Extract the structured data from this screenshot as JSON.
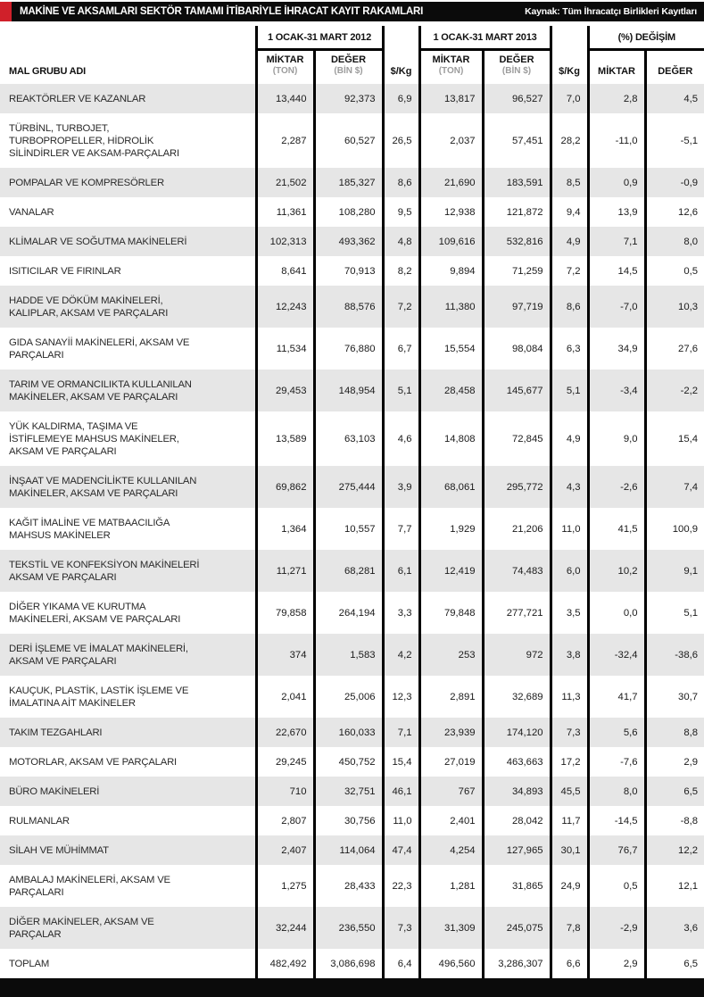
{
  "title_bar": {
    "title": "MAKİNE VE AKSAMLARI SEKTÖR TAMAMI İTİBARİYLE İHRACAT KAYIT RAKAMLARI",
    "source": "Kaynak: Tüm İhracatçı Birlikleri Kayıtları"
  },
  "colors": {
    "accent_red": "#d0202a",
    "bar_black": "#0b0b0b",
    "row_stripe_gray": "#e6e6e6",
    "unit_label_gray": "#9c9c9c"
  },
  "table": {
    "col1_header": "MAL GRUBU ADI",
    "groups": [
      {
        "label": "1 OCAK-31 MART 2012"
      },
      {
        "label": "1 OCAK-31 MART 2013"
      },
      {
        "label": "(%) DEĞİŞİM"
      }
    ],
    "subheaders": {
      "miktar": "MİKTAR",
      "ton": "(TON)",
      "deger": "DEĞER",
      "bin": "(BİN $)",
      "perkg": "$/Kg"
    },
    "rows": [
      {
        "name": "REAKTÖRLER VE KAZANLAR",
        "values": [
          "13,440",
          "92,373",
          "6,9",
          "13,817",
          "96,527",
          "7,0",
          "2,8",
          "4,5"
        ]
      },
      {
        "name": "TÜRBİNL, TURBOJET, TURBOPROPELLER, HİDROLİK SİLİNDİRLER VE AKSAM-PARÇALARI",
        "values": [
          "2,287",
          "60,527",
          "26,5",
          "2,037",
          "57,451",
          "28,2",
          "-11,0",
          "-5,1"
        ]
      },
      {
        "name": "POMPALAR VE KOMPRESÖRLER",
        "values": [
          "21,502",
          "185,327",
          "8,6",
          "21,690",
          "183,591",
          "8,5",
          "0,9",
          "-0,9"
        ]
      },
      {
        "name": "VANALAR",
        "values": [
          "11,361",
          "108,280",
          "9,5",
          "12,938",
          "121,872",
          "9,4",
          "13,9",
          "12,6"
        ]
      },
      {
        "name": "KLİMALAR VE SOĞUTMA MAKİNELERİ",
        "values": [
          "102,313",
          "493,362",
          "4,8",
          "109,616",
          "532,816",
          "4,9",
          "7,1",
          "8,0"
        ]
      },
      {
        "name": "ISITICILAR VE FIRINLAR",
        "values": [
          "8,641",
          "70,913",
          "8,2",
          "9,894",
          "71,259",
          "7,2",
          "14,5",
          "0,5"
        ]
      },
      {
        "name": "HADDE VE DÖKÜM MAKİNELERİ, KALIPLAR, AKSAM VE PARÇALARI",
        "values": [
          "12,243",
          "88,576",
          "7,2",
          "11,380",
          "97,719",
          "8,6",
          "-7,0",
          "10,3"
        ]
      },
      {
        "name": "GIDA SANAYİİ MAKİNELERİ, AKSAM VE PARÇALARI",
        "values": [
          "11,534",
          "76,880",
          "6,7",
          "15,554",
          "98,084",
          "6,3",
          "34,9",
          "27,6"
        ]
      },
      {
        "name": "TARIM VE ORMANCILIKTA KULLANILAN MAKİNELER, AKSAM VE PARÇALARI",
        "values": [
          "29,453",
          "148,954",
          "5,1",
          "28,458",
          "145,677",
          "5,1",
          "-3,4",
          "-2,2"
        ]
      },
      {
        "name": "YÜK KALDIRMA, TAŞIMA VE İSTİFLEMEYE MAHSUS MAKİNELER, AKSAM VE PARÇALARI",
        "values": [
          "13,589",
          "63,103",
          "4,6",
          "14,808",
          "72,845",
          "4,9",
          "9,0",
          "15,4"
        ]
      },
      {
        "name": "İNŞAAT VE MADENCİLİKTE KULLANILAN MAKİNELER, AKSAM VE PARÇALARI",
        "values": [
          "69,862",
          "275,444",
          "3,9",
          "68,061",
          "295,772",
          "4,3",
          "-2,6",
          "7,4"
        ]
      },
      {
        "name": "KAĞIT İMALİNE VE MATBAACILIĞA MAHSUS MAKİNELER",
        "values": [
          "1,364",
          "10,557",
          "7,7",
          "1,929",
          "21,206",
          "11,0",
          "41,5",
          "100,9"
        ]
      },
      {
        "name": "TEKSTİL VE KONFEKSİYON MAKİNELERİ AKSAM VE PARÇALARI",
        "values": [
          "11,271",
          "68,281",
          "6,1",
          "12,419",
          "74,483",
          "6,0",
          "10,2",
          "9,1"
        ]
      },
      {
        "name": "DİĞER YIKAMA VE KURUTMA MAKİNELERİ, AKSAM VE PARÇALARI",
        "values": [
          "79,858",
          "264,194",
          "3,3",
          "79,848",
          "277,721",
          "3,5",
          "0,0",
          "5,1"
        ]
      },
      {
        "name": "DERİ İŞLEME VE İMALAT MAKİNELERİ, AKSAM VE PARÇALARI",
        "values": [
          "374",
          "1,583",
          "4,2",
          "253",
          "972",
          "3,8",
          "-32,4",
          "-38,6"
        ]
      },
      {
        "name": "KAUÇUK, PLASTİK, LASTİK İŞLEME VE İMALATINA AİT MAKİNELER",
        "values": [
          "2,041",
          "25,006",
          "12,3",
          "2,891",
          "32,689",
          "11,3",
          "41,7",
          "30,7"
        ]
      },
      {
        "name": "TAKIM TEZGAHLARI",
        "values": [
          "22,670",
          "160,033",
          "7,1",
          "23,939",
          "174,120",
          "7,3",
          "5,6",
          "8,8"
        ]
      },
      {
        "name": "MOTORLAR, AKSAM VE PARÇALARI",
        "values": [
          "29,245",
          "450,752",
          "15,4",
          "27,019",
          "463,663",
          "17,2",
          "-7,6",
          "2,9"
        ]
      },
      {
        "name": "BÜRO MAKİNELERİ",
        "values": [
          "710",
          "32,751",
          "46,1",
          "767",
          "34,893",
          "45,5",
          "8,0",
          "6,5"
        ]
      },
      {
        "name": "RULMANLAR",
        "values": [
          "2,807",
          "30,756",
          "11,0",
          "2,401",
          "28,042",
          "11,7",
          "-14,5",
          "-8,8"
        ]
      },
      {
        "name": "SİLAH VE MÜHİMMAT",
        "values": [
          "2,407",
          "114,064",
          "47,4",
          "4,254",
          "127,965",
          "30,1",
          "76,7",
          "12,2"
        ]
      },
      {
        "name": "AMBALAJ MAKİNELERİ, AKSAM VE PARÇALARI",
        "values": [
          "1,275",
          "28,433",
          "22,3",
          "1,281",
          "31,865",
          "24,9",
          "0,5",
          "12,1"
        ]
      },
      {
        "name": "DİĞER MAKİNELER, AKSAM VE PARÇALAR",
        "values": [
          "32,244",
          "236,550",
          "7,3",
          "31,309",
          "245,075",
          "7,8",
          "-2,9",
          "3,6"
        ]
      },
      {
        "name": "TOPLAM",
        "values": [
          "482,492",
          "3,086,698",
          "6,4",
          "496,560",
          "3,286,307",
          "6,6",
          "2,9",
          "6,5"
        ]
      }
    ]
  }
}
